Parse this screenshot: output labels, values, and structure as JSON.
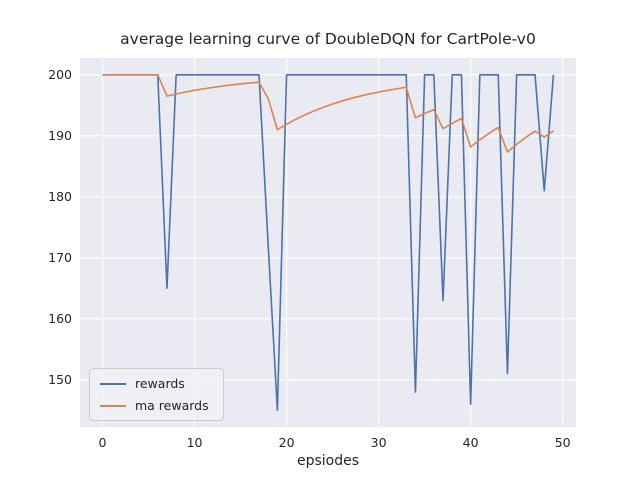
{
  "figure": {
    "background": "#ffffff"
  },
  "chart_data": {
    "type": "line",
    "title": "average learning curve of DoubleDQN for CartPole-v0",
    "xlabel": "epsiodes",
    "ylabel": "",
    "grid": true,
    "plot_background": "#EAEAF2",
    "grid_color": "#FFFFFF",
    "legend_position": "lower left",
    "xlim": [
      -2.45,
      51.45
    ],
    "ylim": [
      142.25,
      202.75
    ],
    "xticks": [
      0,
      10,
      20,
      30,
      40,
      50
    ],
    "yticks": [
      150,
      160,
      170,
      180,
      190,
      200
    ],
    "x": [
      0,
      1,
      2,
      3,
      4,
      5,
      6,
      7,
      8,
      9,
      10,
      11,
      12,
      13,
      14,
      15,
      16,
      17,
      18,
      19,
      20,
      21,
      22,
      23,
      24,
      25,
      26,
      27,
      28,
      29,
      30,
      31,
      32,
      33,
      34,
      35,
      36,
      37,
      38,
      39,
      40,
      41,
      42,
      43,
      44,
      45,
      46,
      47,
      48,
      49
    ],
    "series": [
      {
        "name": "rewards",
        "color": "#4C72B0",
        "values": [
          200,
          200,
          200,
          200,
          200,
          200,
          200,
          165,
          200,
          200,
          200,
          200,
          200,
          200,
          200,
          200,
          200,
          200,
          172,
          145,
          200,
          200,
          200,
          200,
          200,
          200,
          200,
          200,
          200,
          200,
          200,
          200,
          200,
          200,
          148,
          200,
          200,
          163,
          200,
          200,
          146,
          200,
          200,
          200,
          151,
          200,
          200,
          200,
          181,
          200
        ]
      },
      {
        "name": "ma rewards",
        "color": "#DD8452",
        "values": [
          200,
          200,
          200,
          200,
          200,
          200,
          200,
          196.5,
          196.85,
          197.17,
          197.45,
          197.7,
          197.93,
          198.14,
          198.33,
          198.49,
          198.64,
          198.78,
          196.1,
          190.99,
          191.89,
          192.7,
          193.43,
          194.09,
          194.68,
          195.21,
          195.69,
          196.12,
          196.51,
          196.86,
          197.17,
          197.45,
          197.71,
          197.94,
          192.94,
          193.65,
          194.28,
          191.16,
          192.04,
          192.84,
          188.15,
          189.34,
          190.4,
          191.36,
          187.33,
          188.59,
          189.74,
          190.76,
          189.79,
          190.81
        ]
      }
    ]
  }
}
